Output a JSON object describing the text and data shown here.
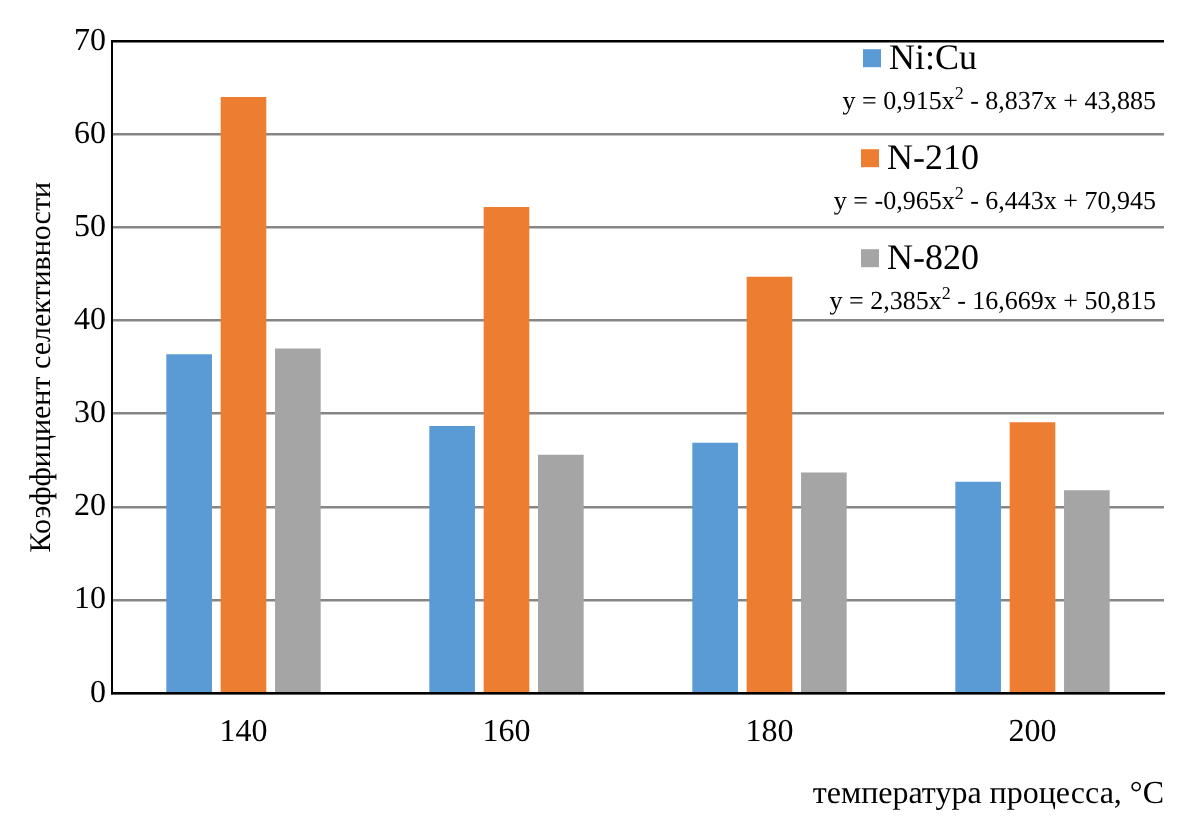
{
  "chart_data": {
    "type": "bar",
    "xlabel": "температура процесса, °C",
    "ylabel": "Коэффициент селективности",
    "categories": [
      "140",
      "160",
      "180",
      "200"
    ],
    "series": [
      {
        "name": "Ni:Cu",
        "color": "#5b9bd5",
        "values": [
          36.4,
          28.7,
          26.9,
          22.7
        ]
      },
      {
        "name": "N-210",
        "color": "#ed7d31",
        "values": [
          64.0,
          52.2,
          44.7,
          29.1
        ]
      },
      {
        "name": "N-820",
        "color": "#a5a5a5",
        "values": [
          37.0,
          25.6,
          23.7,
          21.8
        ]
      }
    ],
    "annotations": [
      "y = 0,915x$^{2}$ - 8,837x + 43,885",
      "y = -0,965x$^{2}$ - 6,443x + 70,945",
      "y = 2,385x$^{2}$ - 16,669x + 50,815"
    ],
    "ylim": [
      0,
      70
    ],
    "yticks": [
      0,
      10,
      20,
      30,
      40,
      50,
      60,
      70
    ],
    "grid": "y",
    "legend": "top right"
  }
}
